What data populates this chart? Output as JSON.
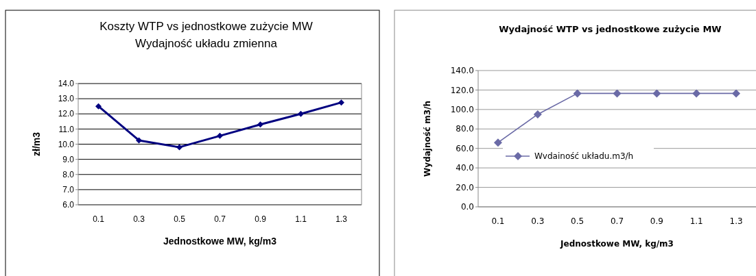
{
  "chart_data": [
    {
      "type": "line",
      "title": "Koszty WTP vs jednostkowe zużycie MW",
      "subtitle": "Wydajność układu zmienna",
      "xlabel": "Jednostkowe MW, kg/m3",
      "ylabel": "zł/m3",
      "categories": [
        "0.1",
        "0.3",
        "0.5",
        "0.7",
        "0.9",
        "1.1",
        "1.3"
      ],
      "series": [
        {
          "color": "#000080",
          "values": [
            12.5,
            10.25,
            9.8,
            10.55,
            11.3,
            12.0,
            12.75
          ]
        }
      ],
      "ylim": [
        6,
        14
      ],
      "yticks": [
        {
          "value": 6,
          "label": "6.0"
        },
        {
          "value": 7,
          "label": "7.0"
        },
        {
          "value": 8,
          "label": "8.0"
        },
        {
          "value": 9,
          "label": "9.0"
        },
        {
          "value": 10,
          "label": "10.0"
        },
        {
          "value": 11,
          "label": "11.0"
        },
        {
          "value": 12,
          "label": "12.0"
        },
        {
          "value": 13,
          "label": "13.0"
        },
        {
          "value": 14,
          "label": "14.0"
        }
      ],
      "grid": "y",
      "marker": "diamond",
      "legend": false
    },
    {
      "type": "line",
      "title": "Wydajność WTP vs jednostkowe zużycie MW",
      "xlabel": "Jednostkowe MW, kg/m3",
      "ylabel": "Wydajność m3/h",
      "categories": [
        "0.1",
        "0.3",
        "0.5",
        "0.7",
        "0.9",
        "1.1",
        "1.3"
      ],
      "series": [
        {
          "name": "Wvdainość układu.m3/h",
          "color": "#6a6aa6",
          "values": [
            66,
            95,
            116.5,
            116.5,
            116.5,
            116.5,
            116.5
          ]
        }
      ],
      "ylim": [
        0,
        140
      ],
      "yticks": [
        {
          "value": 0,
          "label": "0.0"
        },
        {
          "value": 20,
          "label": "20.0"
        },
        {
          "value": 40,
          "label": "40.0"
        },
        {
          "value": 60,
          "label": "60.0"
        },
        {
          "value": 80,
          "label": "80.0"
        },
        {
          "value": 100,
          "label": "100.0"
        },
        {
          "value": 120,
          "label": "120.0"
        },
        {
          "value": 140,
          "label": "140.0"
        }
      ],
      "grid": "y",
      "marker": "diamond",
      "legend": "left"
    }
  ]
}
